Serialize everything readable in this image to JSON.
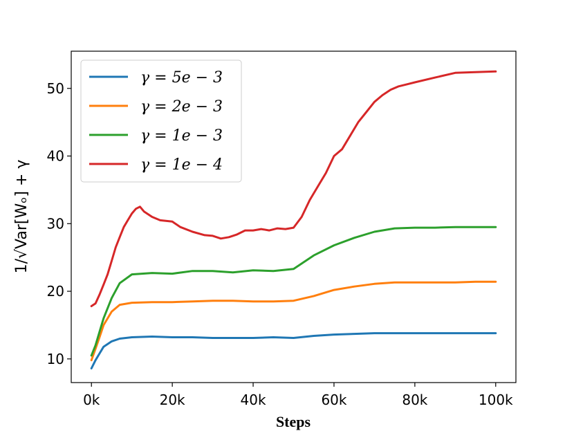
{
  "chart_data": {
    "type": "line",
    "xlabel": "Steps",
    "ylabel": "1/√Var[Wₒ] + γ",
    "xlim": [
      -5000,
      105000
    ],
    "ylim": [
      6.5,
      55.5
    ],
    "xticks": [
      0,
      20000,
      40000,
      60000,
      80000,
      100000
    ],
    "xtick_labels": [
      "0k",
      "20k",
      "40k",
      "60k",
      "80k",
      "100k"
    ],
    "yticks": [
      10,
      20,
      30,
      40,
      50
    ],
    "ytick_labels": [
      "10",
      "20",
      "30",
      "40",
      "50"
    ],
    "legend_position": "upper-left",
    "grid": false,
    "series": [
      {
        "name": "γ = 5e − 3",
        "color": "#1f77b4",
        "x": [
          0,
          1000,
          2000,
          3000,
          5000,
          7000,
          10000,
          15000,
          20000,
          25000,
          30000,
          35000,
          40000,
          45000,
          50000,
          55000,
          60000,
          65000,
          70000,
          75000,
          80000,
          85000,
          90000,
          95000,
          100000
        ],
        "y": [
          8.6,
          9.8,
          10.8,
          11.8,
          12.6,
          13.0,
          13.2,
          13.3,
          13.2,
          13.2,
          13.1,
          13.1,
          13.1,
          13.2,
          13.1,
          13.4,
          13.6,
          13.7,
          13.8,
          13.8,
          13.8,
          13.8,
          13.8,
          13.8,
          13.8
        ]
      },
      {
        "name": "γ = 2e − 3",
        "color": "#ff7f0e",
        "x": [
          0,
          1000,
          2000,
          3000,
          5000,
          7000,
          10000,
          15000,
          20000,
          25000,
          30000,
          35000,
          40000,
          45000,
          50000,
          55000,
          60000,
          65000,
          70000,
          75000,
          80000,
          85000,
          90000,
          95000,
          100000
        ],
        "y": [
          9.8,
          11.5,
          13.2,
          15.0,
          17.0,
          18.0,
          18.3,
          18.4,
          18.4,
          18.5,
          18.6,
          18.6,
          18.5,
          18.5,
          18.6,
          19.3,
          20.2,
          20.7,
          21.1,
          21.3,
          21.3,
          21.3,
          21.3,
          21.4,
          21.4
        ]
      },
      {
        "name": "γ = 1e − 3",
        "color": "#2ca02c",
        "x": [
          0,
          1000,
          2000,
          3000,
          5000,
          7000,
          10000,
          15000,
          20000,
          25000,
          30000,
          35000,
          40000,
          45000,
          50000,
          55000,
          60000,
          65000,
          70000,
          75000,
          80000,
          85000,
          90000,
          95000,
          100000
        ],
        "y": [
          10.5,
          12.0,
          14.0,
          16.0,
          19.0,
          21.2,
          22.5,
          22.7,
          22.6,
          23.0,
          23.0,
          22.8,
          23.1,
          23.0,
          23.3,
          25.3,
          26.8,
          27.9,
          28.8,
          29.3,
          29.4,
          29.4,
          29.5,
          29.5,
          29.5
        ]
      },
      {
        "name": "γ = 1e − 4",
        "color": "#d62728",
        "x": [
          0,
          1000,
          2000,
          3000,
          4000,
          5000,
          6000,
          7000,
          8000,
          9000,
          10000,
          11000,
          12000,
          13000,
          15000,
          17000,
          20000,
          22000,
          25000,
          28000,
          30000,
          32000,
          34000,
          36000,
          38000,
          40000,
          42000,
          44000,
          46000,
          48000,
          50000,
          52000,
          54000,
          56000,
          58000,
          60000,
          62000,
          64000,
          66000,
          68000,
          70000,
          72000,
          74000,
          76000,
          78000,
          80000,
          85000,
          90000,
          95000,
          100000
        ],
        "y": [
          17.8,
          18.2,
          19.5,
          21.0,
          22.5,
          24.5,
          26.5,
          28.0,
          29.5,
          30.5,
          31.5,
          32.2,
          32.5,
          31.8,
          31.0,
          30.5,
          30.3,
          29.5,
          28.8,
          28.3,
          28.2,
          27.8,
          28.0,
          28.4,
          29.0,
          29.0,
          29.2,
          29.0,
          29.3,
          29.2,
          29.4,
          31.0,
          33.5,
          35.5,
          37.5,
          40.0,
          41.0,
          43.0,
          45.0,
          46.5,
          48.0,
          49.0,
          49.8,
          50.3,
          50.6,
          50.9,
          51.6,
          52.3,
          52.4,
          52.5
        ]
      }
    ]
  }
}
